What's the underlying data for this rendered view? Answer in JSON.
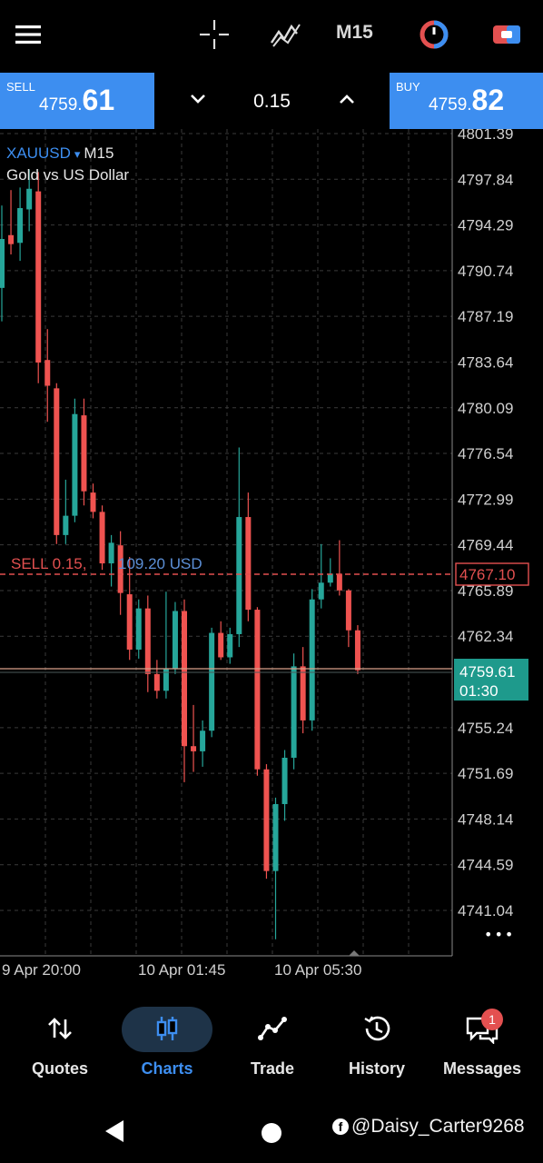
{
  "toolbar": {
    "timeframe": "M15",
    "icons": [
      "menu-icon",
      "crosshair-icon",
      "indicators-icon",
      "timeframe",
      "chart-color-icon",
      "object-icon"
    ]
  },
  "trade": {
    "sell_label": "SELL",
    "sell_price_main": "4759.",
    "sell_price_big": "61",
    "buy_label": "BUY",
    "buy_price_main": "4759.",
    "buy_price_big": "82",
    "volume": "0.15"
  },
  "chart": {
    "symbol": "XAUUSD",
    "symbol_arrow": "▾",
    "timeframe": "M15",
    "description": "Gold vs US Dollar",
    "position_label": "SELL 0.15,",
    "position_profit": "109.20 USD",
    "position_price": "4767.10",
    "bid_price": "4759.61",
    "bar_countdown": "01:30",
    "more": "•••",
    "price_ticks": [
      "4801.39",
      "4797.84",
      "4794.29",
      "4790.74",
      "4787.19",
      "4783.64",
      "4780.09",
      "4776.54",
      "4772.99",
      "4769.44",
      "4765.89",
      "4762.34",
      "4755.24",
      "4751.69",
      "4748.14",
      "4744.59",
      "4741.04"
    ],
    "time_ticks": [
      "9 Apr 20:00",
      "10 Apr 01:45",
      "10 Apr 05:30"
    ]
  },
  "chart_data": {
    "type": "candlestick",
    "title": "XAUUSD M15",
    "subtitle": "Gold vs US Dollar",
    "ylim": [
      4739.5,
      4802.2
    ],
    "grid": true,
    "colors": {
      "bull": "#26a69a",
      "bear": "#ef5350"
    },
    "candles": [
      {
        "o": 4789.4,
        "h": 4795.8,
        "l": 4786.8,
        "c": 4793.2
      },
      {
        "o": 4793.5,
        "h": 4797.0,
        "l": 4792.0,
        "c": 4792.8
      },
      {
        "o": 4792.9,
        "h": 4797.2,
        "l": 4791.5,
        "c": 4795.6
      },
      {
        "o": 4795.5,
        "h": 4798.6,
        "l": 4793.8,
        "c": 4797.1
      },
      {
        "o": 4796.9,
        "h": 4798.4,
        "l": 4782.0,
        "c": 4783.6
      },
      {
        "o": 4783.8,
        "h": 4786.2,
        "l": 4779.0,
        "c": 4781.8
      },
      {
        "o": 4781.6,
        "h": 4782.0,
        "l": 4769.5,
        "c": 4770.2
      },
      {
        "o": 4770.2,
        "h": 4774.5,
        "l": 4769.5,
        "c": 4771.7
      },
      {
        "o": 4771.7,
        "h": 4780.8,
        "l": 4771.2,
        "c": 4779.6
      },
      {
        "o": 4779.5,
        "h": 4780.8,
        "l": 4772.5,
        "c": 4773.6
      },
      {
        "o": 4773.5,
        "h": 4774.2,
        "l": 4771.5,
        "c": 4772.0
      },
      {
        "o": 4772.0,
        "h": 4772.5,
        "l": 4767.5,
        "c": 4768.0
      },
      {
        "o": 4768.0,
        "h": 4770.2,
        "l": 4766.2,
        "c": 4769.6
      },
      {
        "o": 4769.4,
        "h": 4770.5,
        "l": 4764.0,
        "c": 4765.7
      },
      {
        "o": 4765.6,
        "h": 4768.5,
        "l": 4760.5,
        "c": 4761.3
      },
      {
        "o": 4761.3,
        "h": 4765.2,
        "l": 4760.6,
        "c": 4764.5
      },
      {
        "o": 4764.5,
        "h": 4765.5,
        "l": 4758.0,
        "c": 4759.4
      },
      {
        "o": 4759.4,
        "h": 4760.5,
        "l": 4757.5,
        "c": 4758.1
      },
      {
        "o": 4758.1,
        "h": 4765.8,
        "l": 4757.5,
        "c": 4759.8
      },
      {
        "o": 4759.8,
        "h": 4765.0,
        "l": 4759.4,
        "c": 4764.3
      },
      {
        "o": 4764.3,
        "h": 4765.2,
        "l": 4751.0,
        "c": 4753.8
      },
      {
        "o": 4753.8,
        "h": 4757.0,
        "l": 4751.8,
        "c": 4753.4
      },
      {
        "o": 4753.4,
        "h": 4755.8,
        "l": 4752.2,
        "c": 4755.0
      },
      {
        "o": 4755.0,
        "h": 4763.0,
        "l": 4754.5,
        "c": 4762.6
      },
      {
        "o": 4762.6,
        "h": 4763.5,
        "l": 4760.5,
        "c": 4760.7
      },
      {
        "o": 4760.7,
        "h": 4763.0,
        "l": 4760.2,
        "c": 4762.5
      },
      {
        "o": 4762.5,
        "h": 4777.0,
        "l": 4761.5,
        "c": 4771.6
      },
      {
        "o": 4771.6,
        "h": 4773.5,
        "l": 4763.5,
        "c": 4764.4
      },
      {
        "o": 4764.4,
        "h": 4764.6,
        "l": 4751.5,
        "c": 4752.0
      },
      {
        "o": 4752.0,
        "h": 4752.4,
        "l": 4743.5,
        "c": 4744.1
      },
      {
        "o": 4744.1,
        "h": 4749.8,
        "l": 4738.8,
        "c": 4749.3
      },
      {
        "o": 4749.3,
        "h": 4753.5,
        "l": 4748.0,
        "c": 4752.9
      },
      {
        "o": 4752.9,
        "h": 4761.0,
        "l": 4752.0,
        "c": 4760.0
      },
      {
        "o": 4760.0,
        "h": 4761.5,
        "l": 4754.8,
        "c": 4755.8
      },
      {
        "o": 4755.8,
        "h": 4766.0,
        "l": 4755.0,
        "c": 4765.2
      },
      {
        "o": 4765.2,
        "h": 4769.5,
        "l": 4764.5,
        "c": 4766.5
      },
      {
        "o": 4766.5,
        "h": 4768.4,
        "l": 4766.2,
        "c": 4767.2
      },
      {
        "o": 4767.2,
        "h": 4769.8,
        "l": 4765.5,
        "c": 4765.9
      },
      {
        "o": 4765.9,
        "h": 4766.0,
        "l": 4761.5,
        "c": 4762.8
      },
      {
        "o": 4762.8,
        "h": 4763.2,
        "l": 4759.4,
        "c": 4759.7
      }
    ]
  },
  "nav": {
    "quotes": "Quotes",
    "charts": "Charts",
    "trade": "Trade",
    "history": "History",
    "messages": "Messages",
    "messages_badge": "1"
  },
  "watermark": "@Daisy_Carter9268"
}
